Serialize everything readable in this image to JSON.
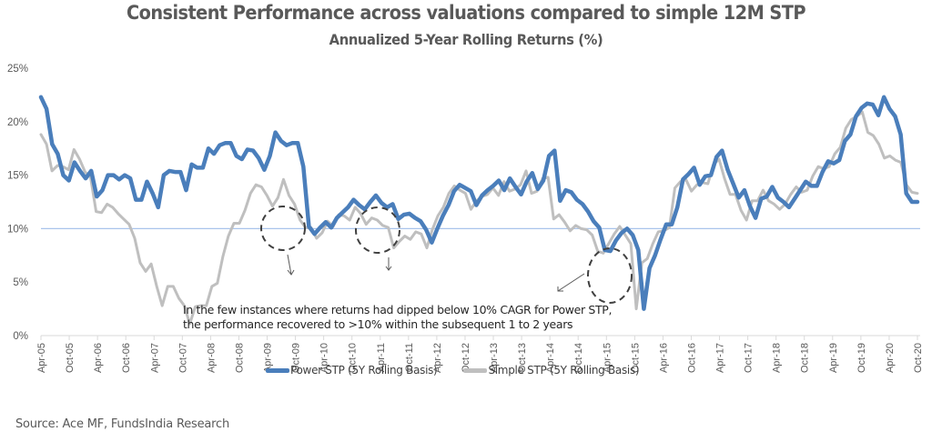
{
  "chart_data": {
    "type": "line",
    "title": "Consistent Performance across valuations compared to simple 12M STP",
    "subtitle": "Annualized 5-Year Rolling Returns (%)",
    "xlabel": "",
    "ylabel": "",
    "ylim": [
      0,
      25
    ],
    "yticks": [
      "0%",
      "5%",
      "10%",
      "15%",
      "20%",
      "25%"
    ],
    "ytick_values": [
      0,
      5,
      10,
      15,
      20,
      25
    ],
    "xtick_labels": [
      "Apr-05",
      "Oct-05",
      "Apr-06",
      "Oct-06",
      "Apr-07",
      "Oct-07",
      "Apr-08",
      "Oct-08",
      "Apr-09",
      "Oct-09",
      "Apr-10",
      "Oct-10",
      "Apr-11",
      "Oct-11",
      "Apr-12",
      "Oct-12",
      "Apr-13",
      "Oct-13",
      "Apr-14",
      "Oct-14",
      "Apr-15",
      "Oct-15",
      "Apr-16",
      "Oct-16",
      "Apr-17",
      "Oct-17",
      "Apr-18",
      "Oct-18",
      "Apr-19",
      "Oct-19",
      "Apr-20",
      "Oct-20"
    ],
    "x_step_note": "points every 2 months from Apr-05 to Oct-20",
    "reference_line": {
      "value": 10,
      "color": "#A9C4EB"
    },
    "grid": false,
    "legend_position": "bottom",
    "series": [
      {
        "name": "Power STP  (5Y Rolling Basis)",
        "color": "#4A7EBB",
        "values": [
          22.3,
          21.2,
          17.9,
          17.0,
          15.0,
          14.5,
          16.2,
          15.4,
          14.7,
          15.4,
          13.0,
          13.6,
          15.0,
          15.0,
          14.6,
          15.0,
          14.7,
          12.7,
          12.7,
          14.4,
          13.3,
          12.0,
          15.0,
          15.4,
          15.3,
          15.3,
          13.6,
          16.0,
          15.7,
          15.7,
          17.5,
          17.0,
          17.8,
          18.0,
          18.0,
          16.8,
          16.5,
          17.4,
          17.3,
          16.6,
          15.5,
          16.8,
          19.0,
          18.2,
          17.8,
          18.0,
          18.0,
          15.8,
          10.2,
          9.5,
          10.1,
          10.6,
          10.1,
          11.0,
          11.5,
          12.0,
          12.7,
          12.2,
          11.8,
          12.5,
          13.1,
          12.4,
          12.0,
          12.3,
          10.9,
          11.3,
          11.4,
          11.0,
          10.7,
          9.9,
          8.7,
          10.0,
          11.2,
          12.2,
          13.5,
          14.1,
          13.8,
          13.5,
          12.2,
          13.1,
          13.6,
          14.0,
          14.5,
          13.6,
          14.7,
          13.9,
          13.2,
          14.4,
          15.2,
          13.7,
          14.5,
          16.8,
          17.3,
          12.6,
          13.6,
          13.4,
          12.7,
          12.3,
          11.6,
          10.7,
          10.1,
          8.0,
          7.9,
          8.9,
          9.6,
          10.0,
          9.4,
          8.0,
          2.5,
          6.3,
          7.5,
          9.0,
          10.4,
          10.4,
          12.0,
          14.6,
          15.1,
          15.7,
          14.1,
          14.9,
          15.0,
          16.7,
          17.3,
          15.5,
          14.2,
          12.9,
          13.6,
          12.1,
          11.0,
          12.8,
          13.0,
          13.9,
          12.9,
          12.5,
          12.0,
          12.8,
          13.6,
          14.4,
          14.0,
          14.0,
          15.3,
          16.3,
          16.1,
          16.4,
          18.2,
          18.8,
          20.5,
          21.3,
          21.7,
          21.6,
          20.6,
          22.3,
          21.2,
          20.5,
          18.8,
          13.3,
          12.5,
          12.5
        ],
        "ignore_values_in_x_step_note": true
      },
      {
        "name": "Simple STP (5Y Rolling Basis)",
        "color": "#BFBFBF",
        "values": [
          18.8,
          17.9,
          15.4,
          15.9,
          15.8,
          15.5,
          17.4,
          16.5,
          15.3,
          14.8,
          11.6,
          11.5,
          12.3,
          12.0,
          11.4,
          10.9,
          10.4,
          9.1,
          6.8,
          6.0,
          6.7,
          4.6,
          2.8,
          4.6,
          4.6,
          3.5,
          2.8,
          1.1,
          2.7,
          2.8,
          2.8,
          4.6,
          4.9,
          7.4,
          9.3,
          10.5,
          10.5,
          11.7,
          13.3,
          14.1,
          13.9,
          13.1,
          12.1,
          12.9,
          14.6,
          13.1,
          12.3,
          10.8,
          10.1,
          10.1,
          9.1,
          9.6,
          10.7,
          10.2,
          11.3,
          11.2,
          10.8,
          12.0,
          11.4,
          10.4,
          11.0,
          10.8,
          10.3,
          10.1,
          8.2,
          8.8,
          9.3,
          9.0,
          9.7,
          9.5,
          8.2,
          9.9,
          11.2,
          12.0,
          13.3,
          14.0,
          13.6,
          13.3,
          11.8,
          12.6,
          13.0,
          13.2,
          13.8,
          13.1,
          14.4,
          13.5,
          13.7,
          14.1,
          15.4,
          13.3,
          13.5,
          14.7,
          14.8,
          10.9,
          11.3,
          10.6,
          9.8,
          10.3,
          10.0,
          9.9,
          9.4,
          7.9,
          7.7,
          8.6,
          9.5,
          10.2,
          9.4,
          8.6,
          2.5,
          6.8,
          7.2,
          8.6,
          9.7,
          9.8,
          10.1,
          13.8,
          14.4,
          14.6,
          13.5,
          14.1,
          14.3,
          14.2,
          16.0,
          16.5,
          14.7,
          13.2,
          13.2,
          11.7,
          10.8,
          12.6,
          12.6,
          13.6,
          12.6,
          12.3,
          11.8,
          12.3,
          13.2,
          13.9,
          13.4,
          13.6,
          14.9,
          15.8,
          15.6,
          15.8,
          17.0,
          17.6,
          19.4,
          20.2,
          20.5,
          20.9,
          19.0,
          18.7,
          17.9,
          16.6,
          16.8,
          16.4,
          16.2,
          14.1,
          13.4,
          13.3
        ]
      }
    ],
    "annotations": [
      {
        "text_line1": "In the few instances where returns had dipped below 10% CAGR for Power STP,",
        "text_line2": "the performance recovered to >10% within the subsequent 1 to 2 years"
      }
    ],
    "highlighted_dips": [
      "Apr-09 to Oct-09",
      "Apr-11",
      "Apr-15"
    ]
  },
  "legend": {
    "items": [
      {
        "label": "Power STP  (5Y Rolling Basis)",
        "color": "#4A7EBB"
      },
      {
        "label": "Simple STP (5Y Rolling Basis)",
        "color": "#BFBFBF"
      }
    ]
  },
  "source": "Source: Ace MF, FundsIndia Research"
}
